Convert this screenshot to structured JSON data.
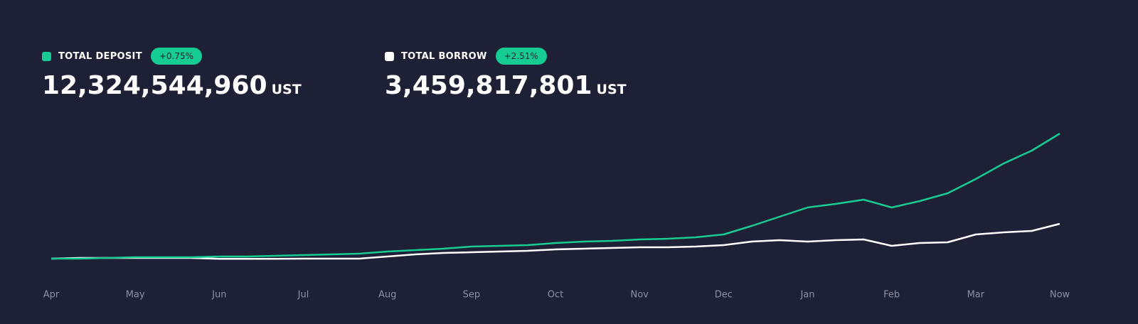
{
  "stats": [
    {
      "label": "TOTAL DEPOSIT",
      "change": "+0.75%",
      "value": "12,324,544,960",
      "unit": "UST",
      "color": "#15cc93"
    },
    {
      "label": "TOTAL BORROW",
      "change": "+2.51%",
      "value": "3,459,817,801",
      "unit": "UST",
      "color": "#ffffff"
    }
  ],
  "chart_data": {
    "type": "line",
    "categories": [
      "Apr",
      null,
      null,
      "May",
      null,
      null,
      "Jun",
      null,
      null,
      "Jul",
      null,
      null,
      "Aug",
      null,
      null,
      "Sep",
      null,
      null,
      "Oct",
      null,
      null,
      "Nov",
      null,
      null,
      "Dec",
      null,
      null,
      "Jan",
      null,
      null,
      "Feb",
      null,
      null,
      "Mar",
      null,
      null,
      "Now"
    ],
    "series": [
      {
        "name": "TOTAL DEPOSIT",
        "color": "#15cc93",
        "values": [
          42000000,
          42000000,
          112000000,
          181000000,
          181000000,
          181000000,
          251000000,
          251000000,
          321000000,
          391000000,
          461000000,
          530000000,
          740000000,
          879000000,
          1019000000,
          1229000000,
          1298000000,
          1368000000,
          1578000000,
          1717000000,
          1787000000,
          1927000000,
          1996000000,
          2136000000,
          2415000000,
          3253000000,
          4160000000,
          5068000000,
          5417000000,
          5835000000,
          5068000000,
          5696000000,
          6463000000,
          7859000000,
          9395000000,
          10651000000,
          12324544960
        ]
      },
      {
        "name": "TOTAL BORROW",
        "color": "#ffffff",
        "values": [
          42000000,
          112000000,
          112000000,
          112000000,
          112000000,
          112000000,
          20000000,
          20000000,
          20000000,
          42000000,
          42000000,
          42000000,
          251000000,
          461000000,
          600000000,
          670000000,
          740000000,
          810000000,
          949000000,
          1019000000,
          1089000000,
          1159000000,
          1159000000,
          1229000000,
          1368000000,
          1717000000,
          1857000000,
          1717000000,
          1857000000,
          1927000000,
          1298000000,
          1578000000,
          1647000000,
          2415000000,
          2624000000,
          2764000000,
          3459817801
        ]
      }
    ]
  }
}
